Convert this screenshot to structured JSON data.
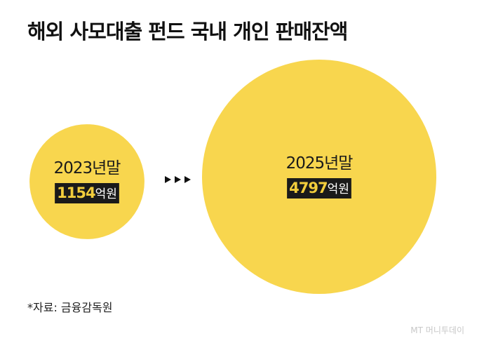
{
  "header": {
    "title": "해외 사모대출 펀드 국내 개인 판매잔액"
  },
  "chart_data": {
    "type": "bubble",
    "unit": "억원",
    "categories": [
      "2023년말",
      "2025년말"
    ],
    "values": [
      1154,
      4797
    ],
    "colors": {
      "bubble": "#f8d64e",
      "label_bg": "#1a1a1a",
      "label_value": "#f2cd3c",
      "label_unit": "#ffffff",
      "arrow": "#111111"
    }
  },
  "footer": {
    "source": "*자료: 금융감독원",
    "watermark": "MT 머니투데이"
  }
}
